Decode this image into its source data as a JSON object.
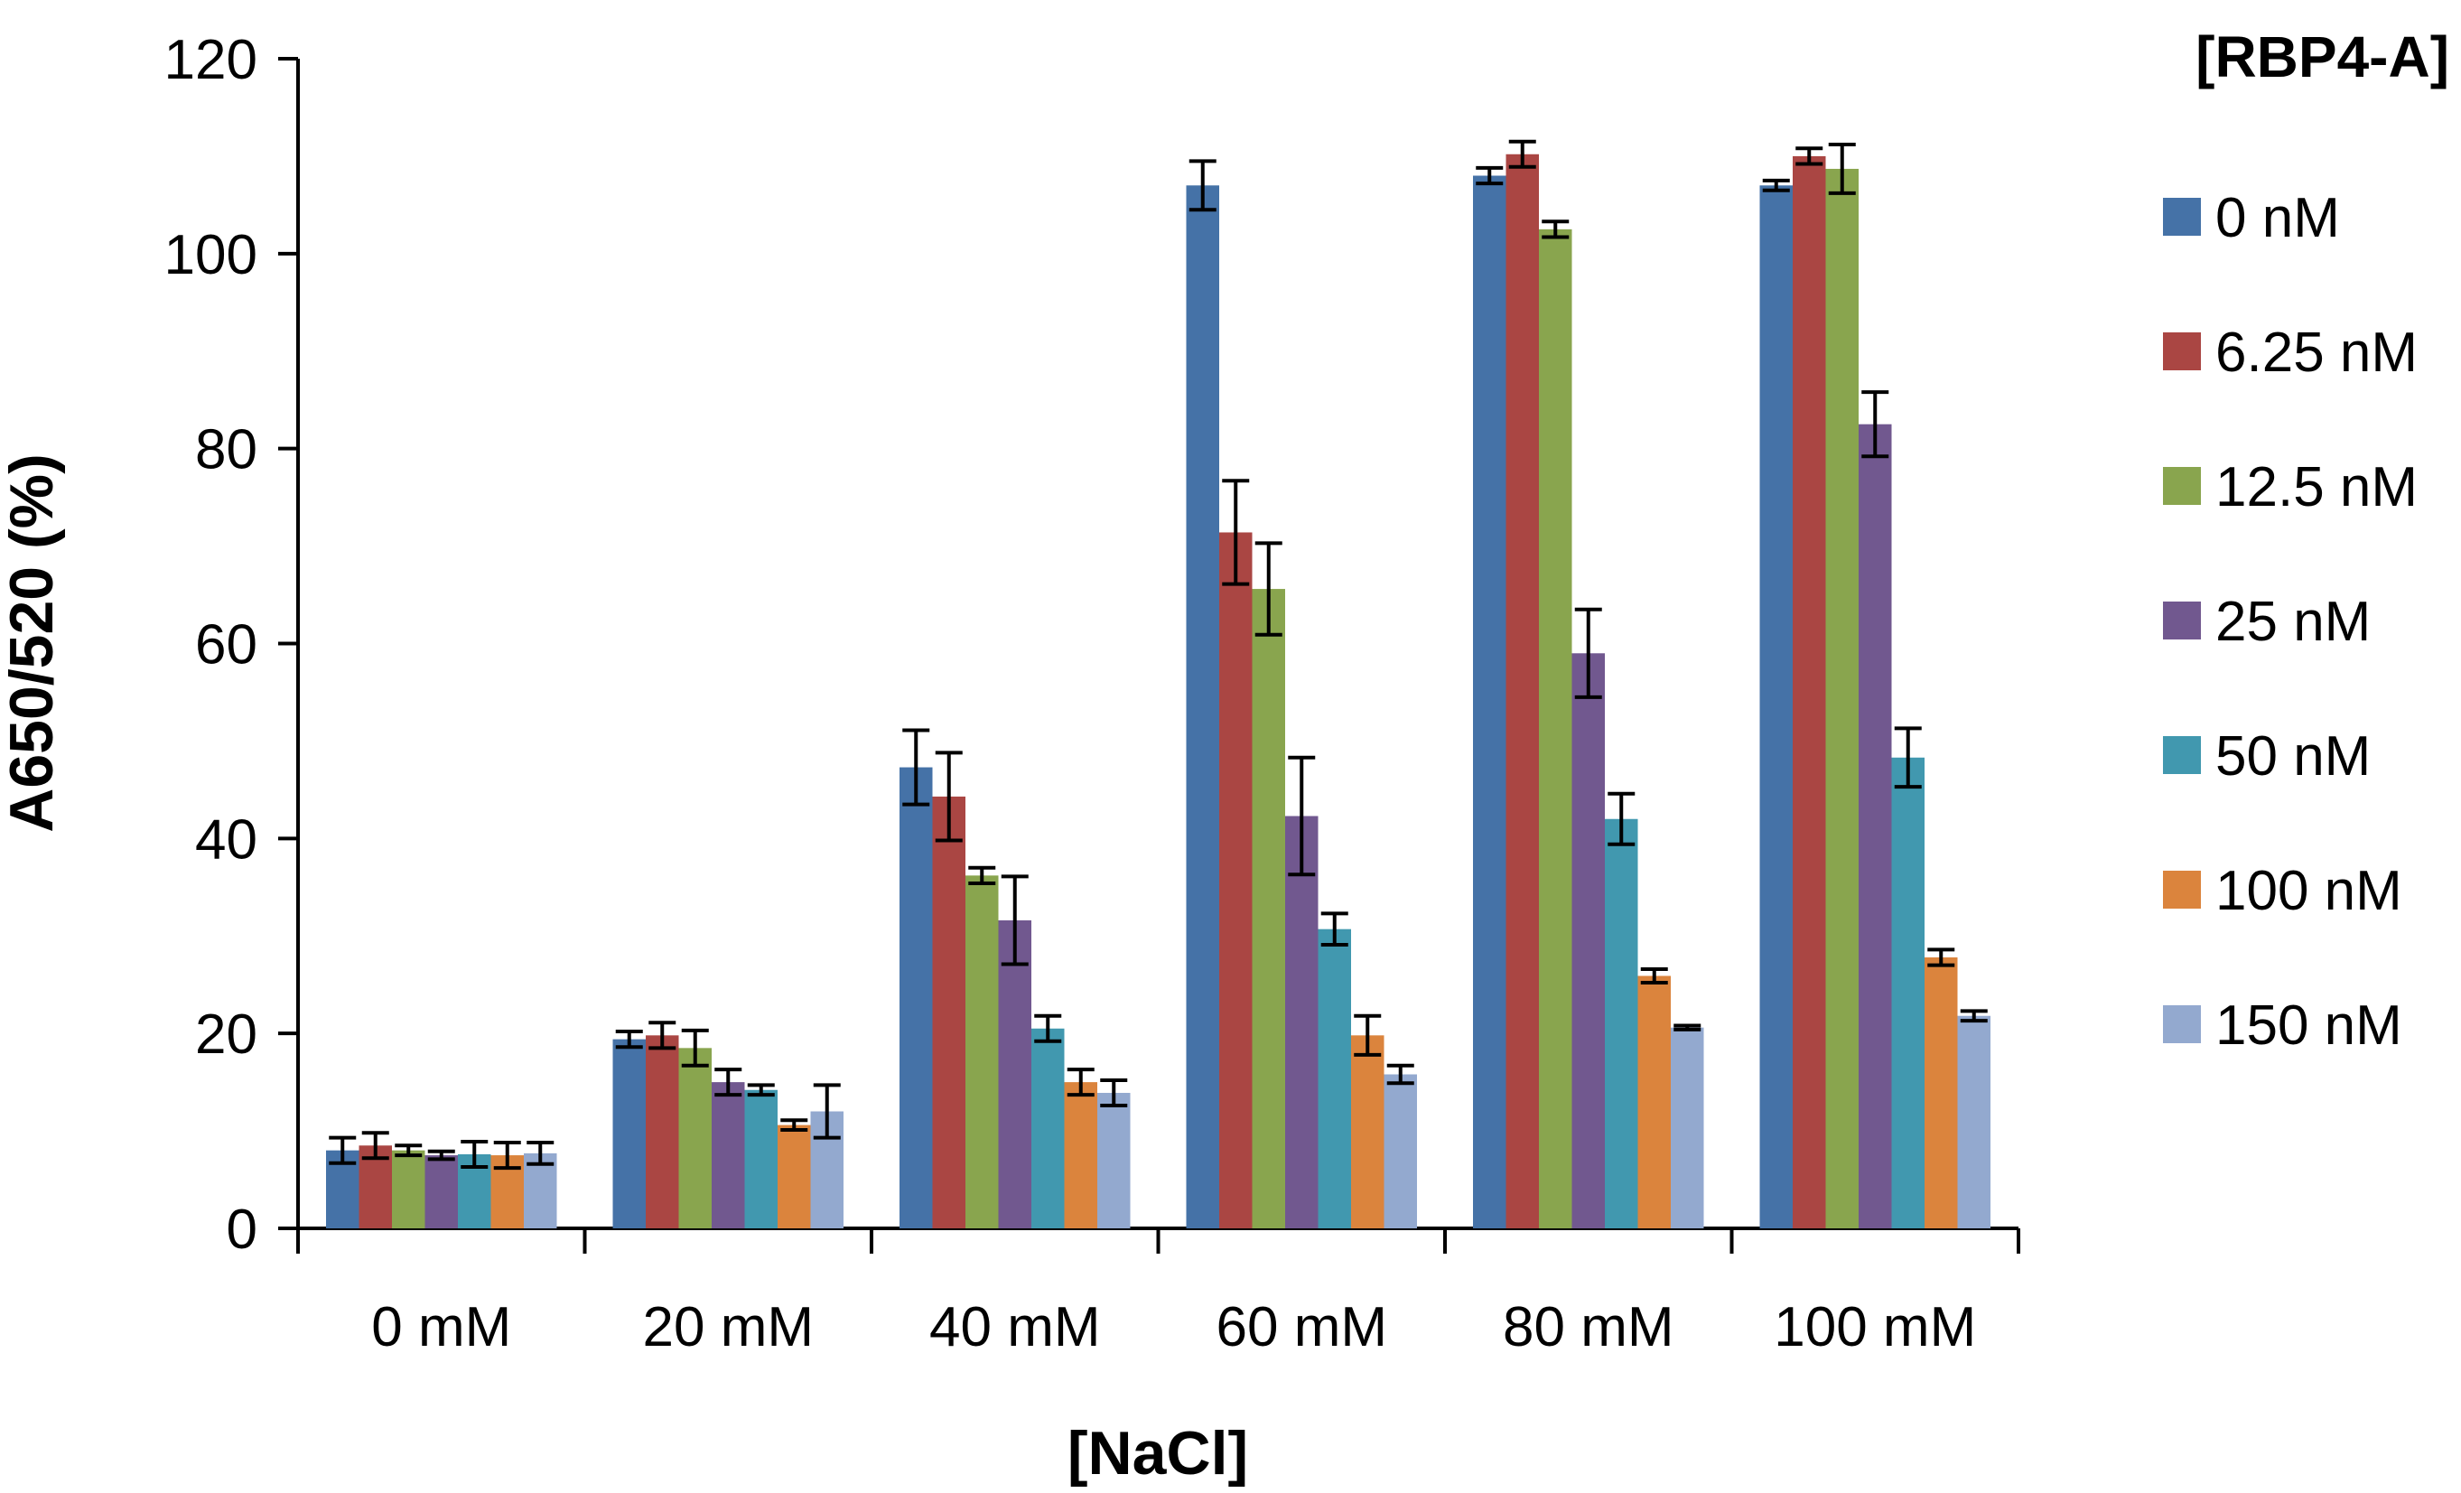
{
  "chart_data": {
    "type": "bar",
    "title": "",
    "xlabel": "[NaCl]",
    "ylabel": "A650/520 (%)",
    "ylim": [
      0,
      120
    ],
    "yticks": [
      "0",
      "20",
      "40",
      "60",
      "80",
      "100",
      "120"
    ],
    "categories": [
      "0 mM",
      "20 mM",
      "40 mM",
      "60 mM",
      "80 mM",
      "100 mM"
    ],
    "legend_title": "[RBP4-A]",
    "legend_position": "right",
    "series": [
      {
        "name": "0 nM",
        "color": "#4572A7",
        "values": [
          8.0,
          19.4,
          47.3,
          107.0,
          108.0,
          107.0
        ],
        "errors": [
          1.3,
          0.8,
          3.8,
          2.5,
          0.8,
          0.5
        ]
      },
      {
        "name": "6.25 nM",
        "color": "#AA4643",
        "values": [
          8.5,
          19.8,
          44.3,
          71.4,
          110.2,
          110.0
        ],
        "errors": [
          1.3,
          1.3,
          4.5,
          5.3,
          1.3,
          0.8
        ]
      },
      {
        "name": "12.5 nM",
        "color": "#89A54E",
        "values": [
          8.0,
          18.5,
          36.2,
          65.6,
          102.5,
          108.7
        ],
        "errors": [
          0.5,
          1.8,
          0.8,
          4.7,
          0.8,
          2.5
        ]
      },
      {
        "name": "25 nM",
        "color": "#71588F",
        "values": [
          7.5,
          15.0,
          31.6,
          42.3,
          59.0,
          82.5
        ],
        "errors": [
          0.4,
          1.3,
          4.5,
          6.0,
          4.5,
          3.3
        ]
      },
      {
        "name": "50 nM",
        "color": "#4198AF",
        "values": [
          7.6,
          14.2,
          20.5,
          30.7,
          42.0,
          48.3
        ],
        "errors": [
          1.3,
          0.5,
          1.3,
          1.6,
          2.6,
          3.0
        ]
      },
      {
        "name": "100 nM",
        "color": "#DB843D",
        "values": [
          7.5,
          10.6,
          15.0,
          19.8,
          25.9,
          27.8
        ],
        "errors": [
          1.3,
          0.5,
          1.3,
          2.0,
          0.7,
          0.8
        ]
      },
      {
        "name": "150 nM",
        "color": "#93A9CF",
        "values": [
          7.7,
          12.0,
          13.9,
          15.8,
          20.6,
          21.8
        ],
        "errors": [
          1.1,
          2.7,
          1.3,
          0.9,
          0.2,
          0.5
        ]
      }
    ]
  }
}
